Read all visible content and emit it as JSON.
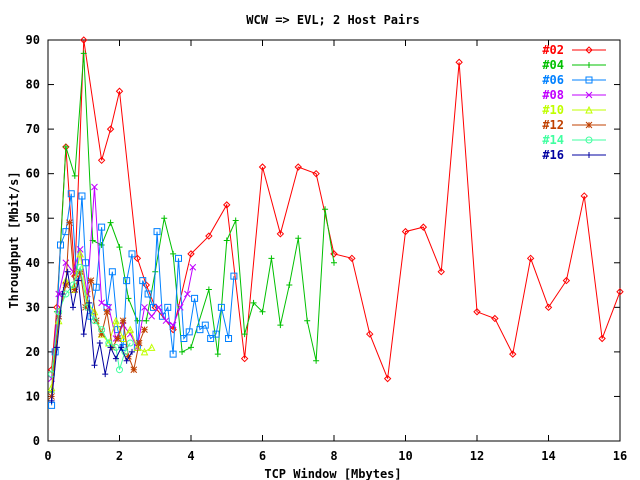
{
  "chart_data": {
    "type": "line",
    "title": "WCW => EVL; 2 Host Pairs",
    "xlabel": "TCP Window [Mbytes]",
    "ylabel": "Throughput [Mbit/s]",
    "xlim": [
      0,
      16
    ],
    "ylim": [
      0,
      90
    ],
    "x_ticks": [
      "0",
      "2",
      "4",
      "6",
      "8",
      "10",
      "12",
      "14",
      "16"
    ],
    "y_ticks": [
      "0",
      "10",
      "20",
      "30",
      "40",
      "50",
      "60",
      "70",
      "80",
      "90"
    ],
    "legend_position": "top-right",
    "grid": false,
    "series": [
      {
        "name": "#02",
        "color": "#ff0000",
        "marker": "diamond",
        "points": [
          [
            0.1,
            16
          ],
          [
            0.25,
            30
          ],
          [
            0.5,
            66
          ],
          [
            0.75,
            37
          ],
          [
            1,
            90
          ],
          [
            1.5,
            63
          ],
          [
            1.75,
            70
          ],
          [
            2,
            78.5
          ],
          [
            2.5,
            41
          ],
          [
            2.75,
            35
          ],
          [
            3,
            30
          ],
          [
            3.5,
            25
          ],
          [
            4,
            42
          ],
          [
            4.5,
            46
          ],
          [
            5,
            53
          ],
          [
            5.5,
            18.5
          ],
          [
            6,
            61.5
          ],
          [
            6.5,
            46.5
          ],
          [
            7,
            61.5
          ],
          [
            7.5,
            60
          ],
          [
            8,
            42
          ],
          [
            8.5,
            41
          ],
          [
            9,
            24
          ],
          [
            9.5,
            14
          ],
          [
            10,
            47
          ],
          [
            10.5,
            48
          ],
          [
            11,
            38
          ],
          [
            11.5,
            85
          ],
          [
            12,
            29
          ],
          [
            12.5,
            27.5
          ],
          [
            13,
            19.5
          ],
          [
            13.5,
            41
          ],
          [
            14,
            30
          ],
          [
            14.5,
            36
          ],
          [
            15,
            55
          ],
          [
            15.5,
            23
          ],
          [
            16,
            33.5
          ]
        ]
      },
      {
        "name": "#04",
        "color": "#00c000",
        "marker": "plus",
        "points": [
          [
            0.1,
            11
          ],
          [
            0.25,
            29
          ],
          [
            0.5,
            66
          ],
          [
            0.75,
            59.5
          ],
          [
            1,
            87
          ],
          [
            1.25,
            45
          ],
          [
            1.5,
            44
          ],
          [
            1.75,
            49
          ],
          [
            2,
            43.5
          ],
          [
            2.25,
            32
          ],
          [
            2.5,
            27
          ],
          [
            2.75,
            27
          ],
          [
            3,
            38
          ],
          [
            3.25,
            50
          ],
          [
            3.5,
            42
          ],
          [
            3.75,
            20
          ],
          [
            4,
            21
          ],
          [
            4.5,
            34
          ],
          [
            4.75,
            19.5
          ],
          [
            5,
            45
          ],
          [
            5.25,
            49.5
          ],
          [
            5.5,
            24
          ],
          [
            5.75,
            31
          ],
          [
            6,
            29
          ],
          [
            6.25,
            41
          ],
          [
            6.5,
            26
          ],
          [
            6.75,
            35
          ],
          [
            7,
            45.5
          ],
          [
            7.25,
            27
          ],
          [
            7.5,
            18
          ],
          [
            7.75,
            52
          ],
          [
            8,
            40
          ]
        ]
      },
      {
        "name": "#06",
        "color": "#0080ff",
        "marker": "square",
        "points": [
          [
            0.1,
            8
          ],
          [
            0.2,
            20
          ],
          [
            0.35,
            44
          ],
          [
            0.5,
            47
          ],
          [
            0.65,
            55.5
          ],
          [
            0.8,
            37
          ],
          [
            0.95,
            55
          ],
          [
            1.05,
            40
          ],
          [
            1.2,
            28
          ],
          [
            1.35,
            34.5
          ],
          [
            1.5,
            48
          ],
          [
            1.65,
            30
          ],
          [
            1.8,
            38
          ],
          [
            1.95,
            25
          ],
          [
            2.1,
            21
          ],
          [
            2.2,
            36
          ],
          [
            2.35,
            42
          ],
          [
            2.5,
            21
          ],
          [
            2.65,
            36
          ],
          [
            2.8,
            33
          ],
          [
            2.95,
            30
          ],
          [
            3.05,
            47
          ],
          [
            3.2,
            28
          ],
          [
            3.35,
            30
          ],
          [
            3.5,
            19.5
          ],
          [
            3.65,
            41
          ],
          [
            3.8,
            23
          ],
          [
            3.95,
            24.5
          ],
          [
            4.1,
            32
          ],
          [
            4.25,
            25
          ],
          [
            4.4,
            26
          ],
          [
            4.55,
            23
          ],
          [
            4.7,
            24
          ],
          [
            4.85,
            30
          ],
          [
            5.05,
            23
          ],
          [
            5.2,
            37
          ]
        ]
      },
      {
        "name": "#08",
        "color": "#c000ff",
        "marker": "x",
        "points": [
          [
            0.1,
            14
          ],
          [
            0.3,
            33
          ],
          [
            0.5,
            40
          ],
          [
            0.7,
            38
          ],
          [
            0.9,
            43
          ],
          [
            1.1,
            33
          ],
          [
            1.3,
            57
          ],
          [
            1.5,
            31
          ],
          [
            1.7,
            30
          ],
          [
            1.9,
            23
          ],
          [
            2.1,
            26
          ],
          [
            2.3,
            24
          ],
          [
            2.5,
            21
          ],
          [
            2.7,
            30
          ],
          [
            2.9,
            28
          ],
          [
            3.1,
            30
          ],
          [
            3.3,
            27
          ],
          [
            3.5,
            26
          ],
          [
            3.7,
            30
          ],
          [
            3.9,
            33
          ],
          [
            4.05,
            39
          ]
        ]
      },
      {
        "name": "#10",
        "color": "#c0ff00",
        "marker": "triangle",
        "points": [
          [
            0.1,
            12
          ],
          [
            0.3,
            27
          ],
          [
            0.5,
            36
          ],
          [
            0.7,
            34
          ],
          [
            0.9,
            42
          ],
          [
            1.1,
            31
          ],
          [
            1.3,
            29
          ],
          [
            1.5,
            24
          ],
          [
            1.7,
            22
          ],
          [
            1.9,
            27
          ],
          [
            2.1,
            23
          ],
          [
            2.3,
            25
          ],
          [
            2.5,
            21
          ],
          [
            2.7,
            20
          ],
          [
            2.9,
            21
          ]
        ]
      },
      {
        "name": "#12",
        "color": "#c04000",
        "marker": "star",
        "points": [
          [
            0.1,
            10
          ],
          [
            0.3,
            28
          ],
          [
            0.5,
            35
          ],
          [
            0.6,
            49
          ],
          [
            0.75,
            34
          ],
          [
            0.9,
            38
          ],
          [
            1.05,
            30
          ],
          [
            1.2,
            36
          ],
          [
            1.35,
            27
          ],
          [
            1.5,
            24
          ],
          [
            1.65,
            29
          ],
          [
            1.8,
            21
          ],
          [
            1.95,
            23
          ],
          [
            2.1,
            27
          ],
          [
            2.25,
            19
          ],
          [
            2.4,
            16
          ],
          [
            2.55,
            22
          ],
          [
            2.7,
            25
          ]
        ]
      },
      {
        "name": "#14",
        "color": "#40ffa0",
        "marker": "circle",
        "points": [
          [
            0.1,
            15
          ],
          [
            0.3,
            29
          ],
          [
            0.5,
            33
          ],
          [
            0.7,
            35
          ],
          [
            0.9,
            39
          ],
          [
            1.1,
            30
          ],
          [
            1.3,
            27
          ],
          [
            1.5,
            25
          ],
          [
            1.7,
            22
          ],
          [
            1.9,
            21
          ],
          [
            2.0,
            16
          ],
          [
            2.15,
            20
          ],
          [
            2.3,
            22
          ]
        ]
      },
      {
        "name": "#16",
        "color": "#0000a0",
        "marker": "cross",
        "points": [
          [
            0.1,
            9
          ],
          [
            0.25,
            21
          ],
          [
            0.4,
            33
          ],
          [
            0.55,
            38
          ],
          [
            0.7,
            30
          ],
          [
            0.85,
            36
          ],
          [
            1.0,
            24
          ],
          [
            1.15,
            31
          ],
          [
            1.3,
            17
          ],
          [
            1.45,
            22
          ],
          [
            1.6,
            15
          ],
          [
            1.75,
            21
          ],
          [
            1.9,
            18.5
          ],
          [
            2.05,
            21
          ],
          [
            2.2,
            18
          ],
          [
            2.35,
            20
          ]
        ]
      }
    ]
  }
}
